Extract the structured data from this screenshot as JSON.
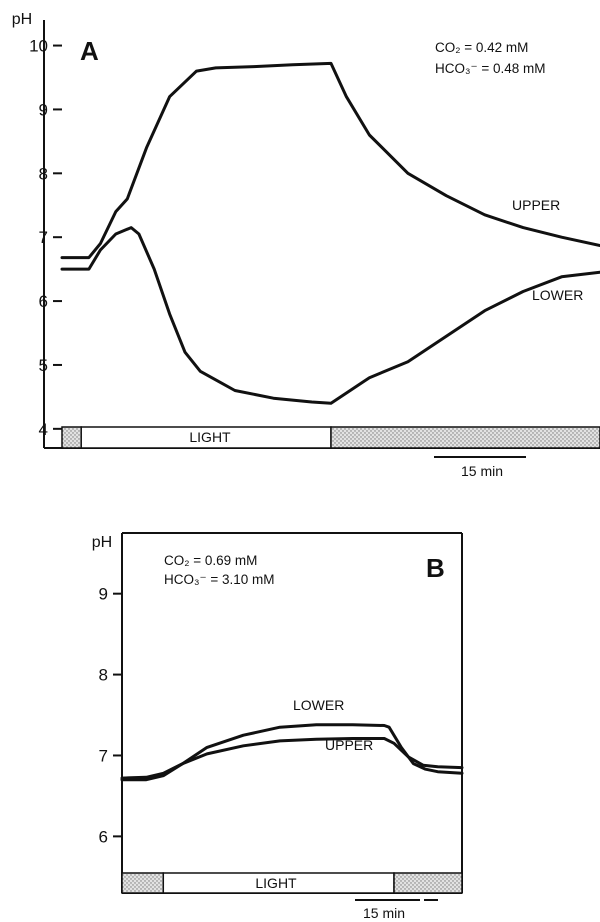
{
  "chart_data": [
    {
      "type": "line",
      "panel_label": "A",
      "ylabel": "pH",
      "yticks": [
        4,
        5,
        6,
        7,
        8,
        9,
        10
      ],
      "ylim": [
        3.7,
        10.4
      ],
      "conditions": [
        "CO₂ = 0.42 mM",
        "HCO₃⁻ = 0.48 mM"
      ],
      "light_label": "LIGHT",
      "scale_label": "15 min",
      "x_unit": "min",
      "xlim": [
        0,
        140
      ],
      "light_interval": [
        5,
        70
      ],
      "series": [
        {
          "name": "UPPER",
          "x": [
            0,
            7,
            10,
            14,
            17,
            22,
            28,
            35,
            40,
            50,
            60,
            70,
            74,
            80,
            90,
            100,
            110,
            120,
            130,
            140
          ],
          "y": [
            6.68,
            6.68,
            6.9,
            7.4,
            7.6,
            8.4,
            9.2,
            9.6,
            9.65,
            9.67,
            9.7,
            9.72,
            9.2,
            8.6,
            8.0,
            7.65,
            7.35,
            7.15,
            7.0,
            6.87
          ]
        },
        {
          "name": "LOWER",
          "x": [
            0,
            7,
            10,
            14,
            18,
            20,
            24,
            28,
            32,
            36,
            45,
            55,
            65,
            70,
            75,
            80,
            90,
            100,
            110,
            120,
            130,
            140
          ],
          "y": [
            6.5,
            6.5,
            6.8,
            7.05,
            7.15,
            7.05,
            6.5,
            5.8,
            5.2,
            4.9,
            4.6,
            4.48,
            4.42,
            4.4,
            4.6,
            4.8,
            5.05,
            5.45,
            5.85,
            6.15,
            6.38,
            6.45
          ]
        }
      ]
    },
    {
      "type": "line",
      "panel_label": "B",
      "ylabel": "pH",
      "yticks": [
        6,
        7,
        8,
        9
      ],
      "ylim": [
        5.3,
        9.75
      ],
      "conditions": [
        "CO₂ = 0.69 mM",
        "HCO₃⁻ = 3.10 mM"
      ],
      "light_label": "LIGHT",
      "scale_label": "15 min",
      "x_unit": "min",
      "xlim": [
        0,
        140
      ],
      "light_interval": [
        17,
        112
      ],
      "series": [
        {
          "name": "LOWER",
          "x": [
            0,
            10,
            17,
            25,
            35,
            50,
            65,
            80,
            95,
            108,
            110,
            115,
            120,
            125,
            130,
            140
          ],
          "y": [
            6.7,
            6.7,
            6.75,
            6.9,
            7.1,
            7.25,
            7.35,
            7.38,
            7.38,
            7.37,
            7.35,
            7.1,
            6.9,
            6.83,
            6.8,
            6.78
          ]
        },
        {
          "name": "UPPER",
          "x": [
            0,
            10,
            17,
            25,
            35,
            50,
            65,
            80,
            95,
            108,
            112,
            118,
            124,
            130,
            140
          ],
          "y": [
            6.72,
            6.73,
            6.78,
            6.9,
            7.02,
            7.12,
            7.18,
            7.2,
            7.21,
            7.21,
            7.15,
            6.98,
            6.88,
            6.86,
            6.85
          ]
        }
      ]
    }
  ]
}
